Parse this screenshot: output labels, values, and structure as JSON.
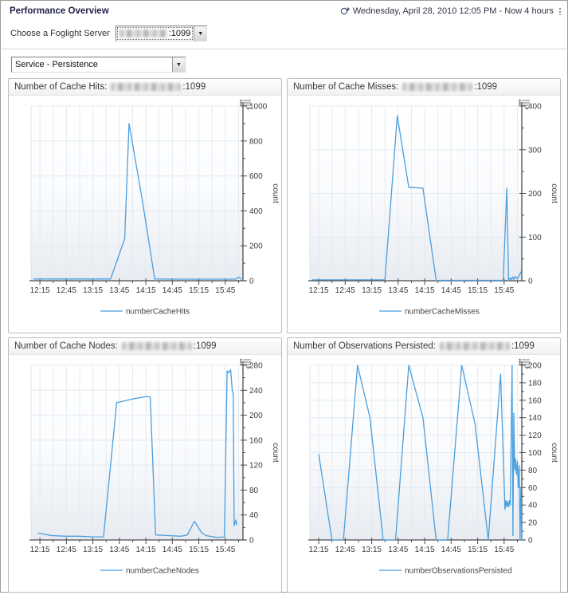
{
  "header": {
    "title": "Performance Overview",
    "time_range": "Wednesday, April 28, 2010 12:05 PM - Now 4 hours"
  },
  "server_selector": {
    "label": "Choose a Foglight Server",
    "value_suffix": ":1099",
    "redacted": true
  },
  "service_selector": {
    "value": "Service - Persistence"
  },
  "colors": {
    "series_line": "#4a9ede",
    "grid": "#e4eaf2",
    "axis": "#4c4c4c",
    "tick_label": "#3c3c3c",
    "panel_border": "#bdbdbd"
  },
  "chart_data": [
    {
      "type": "line",
      "title": "Number of Cache Hits:",
      "host": ":1099",
      "legend": "numberCacheHits",
      "ylabel": "count",
      "xlim": [
        5,
        245
      ],
      "x_minor_step": 15,
      "x_ticks": [
        {
          "m": 15,
          "label": "12:15"
        },
        {
          "m": 45,
          "label": "12:45"
        },
        {
          "m": 75,
          "label": "13:15"
        },
        {
          "m": 105,
          "label": "13:45"
        },
        {
          "m": 135,
          "label": "14:15"
        },
        {
          "m": 165,
          "label": "14:45"
        },
        {
          "m": 195,
          "label": "15:15"
        },
        {
          "m": 225,
          "label": "15:45"
        }
      ],
      "ylim": [
        0,
        1000
      ],
      "ystep": 200,
      "points": [
        [
          8,
          10
        ],
        [
          30,
          10
        ],
        [
          55,
          10
        ],
        [
          80,
          10
        ],
        [
          95,
          10
        ],
        [
          111,
          240
        ],
        [
          116,
          900
        ],
        [
          131,
          460
        ],
        [
          145,
          10
        ],
        [
          170,
          9
        ],
        [
          195,
          9
        ],
        [
          220,
          9
        ],
        [
          237,
          9
        ],
        [
          240,
          22
        ],
        [
          243,
          9
        ]
      ]
    },
    {
      "type": "line",
      "title": "Number of Cache Misses:",
      "host": ":1099",
      "legend": "numberCacheMisses",
      "ylabel": "count",
      "xlim": [
        5,
        245
      ],
      "x_minor_step": 15,
      "x_ticks": [
        {
          "m": 15,
          "label": "12:15"
        },
        {
          "m": 45,
          "label": "12:45"
        },
        {
          "m": 75,
          "label": "13:15"
        },
        {
          "m": 105,
          "label": "13:45"
        },
        {
          "m": 135,
          "label": "14:15"
        },
        {
          "m": 165,
          "label": "14:45"
        },
        {
          "m": 195,
          "label": "15:15"
        },
        {
          "m": 225,
          "label": "15:45"
        }
      ],
      "ylim": [
        0,
        400
      ],
      "ystep": 100,
      "points": [
        [
          8,
          2
        ],
        [
          30,
          2
        ],
        [
          55,
          2
        ],
        [
          80,
          2
        ],
        [
          90,
          2
        ],
        [
          104,
          378
        ],
        [
          117,
          214
        ],
        [
          133,
          212
        ],
        [
          148,
          1
        ],
        [
          170,
          1
        ],
        [
          195,
          1
        ],
        [
          218,
          1
        ],
        [
          224,
          1
        ],
        [
          228,
          212
        ],
        [
          230,
          1
        ],
        [
          232,
          7
        ],
        [
          233,
          2
        ],
        [
          235,
          9
        ],
        [
          236,
          3
        ],
        [
          238,
          10
        ],
        [
          240,
          4
        ],
        [
          242,
          12
        ],
        [
          244,
          20
        ]
      ]
    },
    {
      "type": "line",
      "title": "Number of Cache Nodes:",
      "host": ":1099",
      "legend": "numberCacheNodes",
      "ylabel": "count",
      "xlim": [
        5,
        245
      ],
      "x_minor_step": 15,
      "x_ticks": [
        {
          "m": 15,
          "label": "12:15"
        },
        {
          "m": 45,
          "label": "12:45"
        },
        {
          "m": 75,
          "label": "13:15"
        },
        {
          "m": 105,
          "label": "13:45"
        },
        {
          "m": 135,
          "label": "14:15"
        },
        {
          "m": 165,
          "label": "14:45"
        },
        {
          "m": 195,
          "label": "15:15"
        },
        {
          "m": 225,
          "label": "15:45"
        }
      ],
      "ylim": [
        0,
        280
      ],
      "ystep": 40,
      "points": [
        [
          13,
          11
        ],
        [
          28,
          7
        ],
        [
          45,
          6
        ],
        [
          60,
          6
        ],
        [
          75,
          5
        ],
        [
          87,
          5
        ],
        [
          102,
          220
        ],
        [
          120,
          226
        ],
        [
          136,
          230
        ],
        [
          140,
          229
        ],
        [
          146,
          8
        ],
        [
          160,
          7
        ],
        [
          175,
          6
        ],
        [
          182,
          8
        ],
        [
          190,
          30
        ],
        [
          198,
          12
        ],
        [
          203,
          7
        ],
        [
          216,
          4
        ],
        [
          224,
          5
        ],
        [
          227,
          271
        ],
        [
          229,
          268
        ],
        [
          231,
          273
        ],
        [
          233,
          237
        ],
        [
          234,
          236
        ],
        [
          235,
          23
        ],
        [
          237,
          32
        ],
        [
          238,
          24
        ]
      ]
    },
    {
      "type": "line",
      "title": "Number of Observations Persisted:",
      "host": ":1099",
      "legend": "numberObservationsPersisted",
      "ylabel": "count",
      "xlim": [
        5,
        245
      ],
      "x_minor_step": 15,
      "x_ticks": [
        {
          "m": 15,
          "label": "12:15"
        },
        {
          "m": 45,
          "label": "12:45"
        },
        {
          "m": 75,
          "label": "13:15"
        },
        {
          "m": 105,
          "label": "13:45"
        },
        {
          "m": 135,
          "label": "14:15"
        },
        {
          "m": 165,
          "label": "14:45"
        },
        {
          "m": 195,
          "label": "15:15"
        },
        {
          "m": 225,
          "label": "15:45"
        }
      ],
      "ylim": [
        0,
        200
      ],
      "ystep": 20,
      "points": [
        [
          15,
          98
        ],
        [
          30,
          0
        ],
        [
          43,
          0
        ],
        [
          59,
          200
        ],
        [
          73,
          140
        ],
        [
          88,
          0
        ],
        [
          102,
          0
        ],
        [
          117,
          200
        ],
        [
          133,
          140
        ],
        [
          148,
          0
        ],
        [
          161,
          0
        ],
        [
          177,
          200
        ],
        [
          192,
          133
        ],
        [
          207,
          0
        ],
        [
          221,
          190
        ],
        [
          226,
          35
        ],
        [
          227,
          45
        ],
        [
          228,
          38
        ],
        [
          229,
          44
        ],
        [
          230,
          38
        ],
        [
          231,
          45
        ],
        [
          232,
          40
        ],
        [
          234,
          200
        ],
        [
          235,
          5
        ],
        [
          236,
          145
        ],
        [
          237,
          80
        ],
        [
          238,
          93
        ],
        [
          239,
          75
        ],
        [
          240,
          90
        ],
        [
          241,
          60
        ],
        [
          242,
          85
        ],
        [
          243,
          0
        ],
        [
          244,
          60
        ],
        [
          245,
          0
        ]
      ]
    }
  ]
}
